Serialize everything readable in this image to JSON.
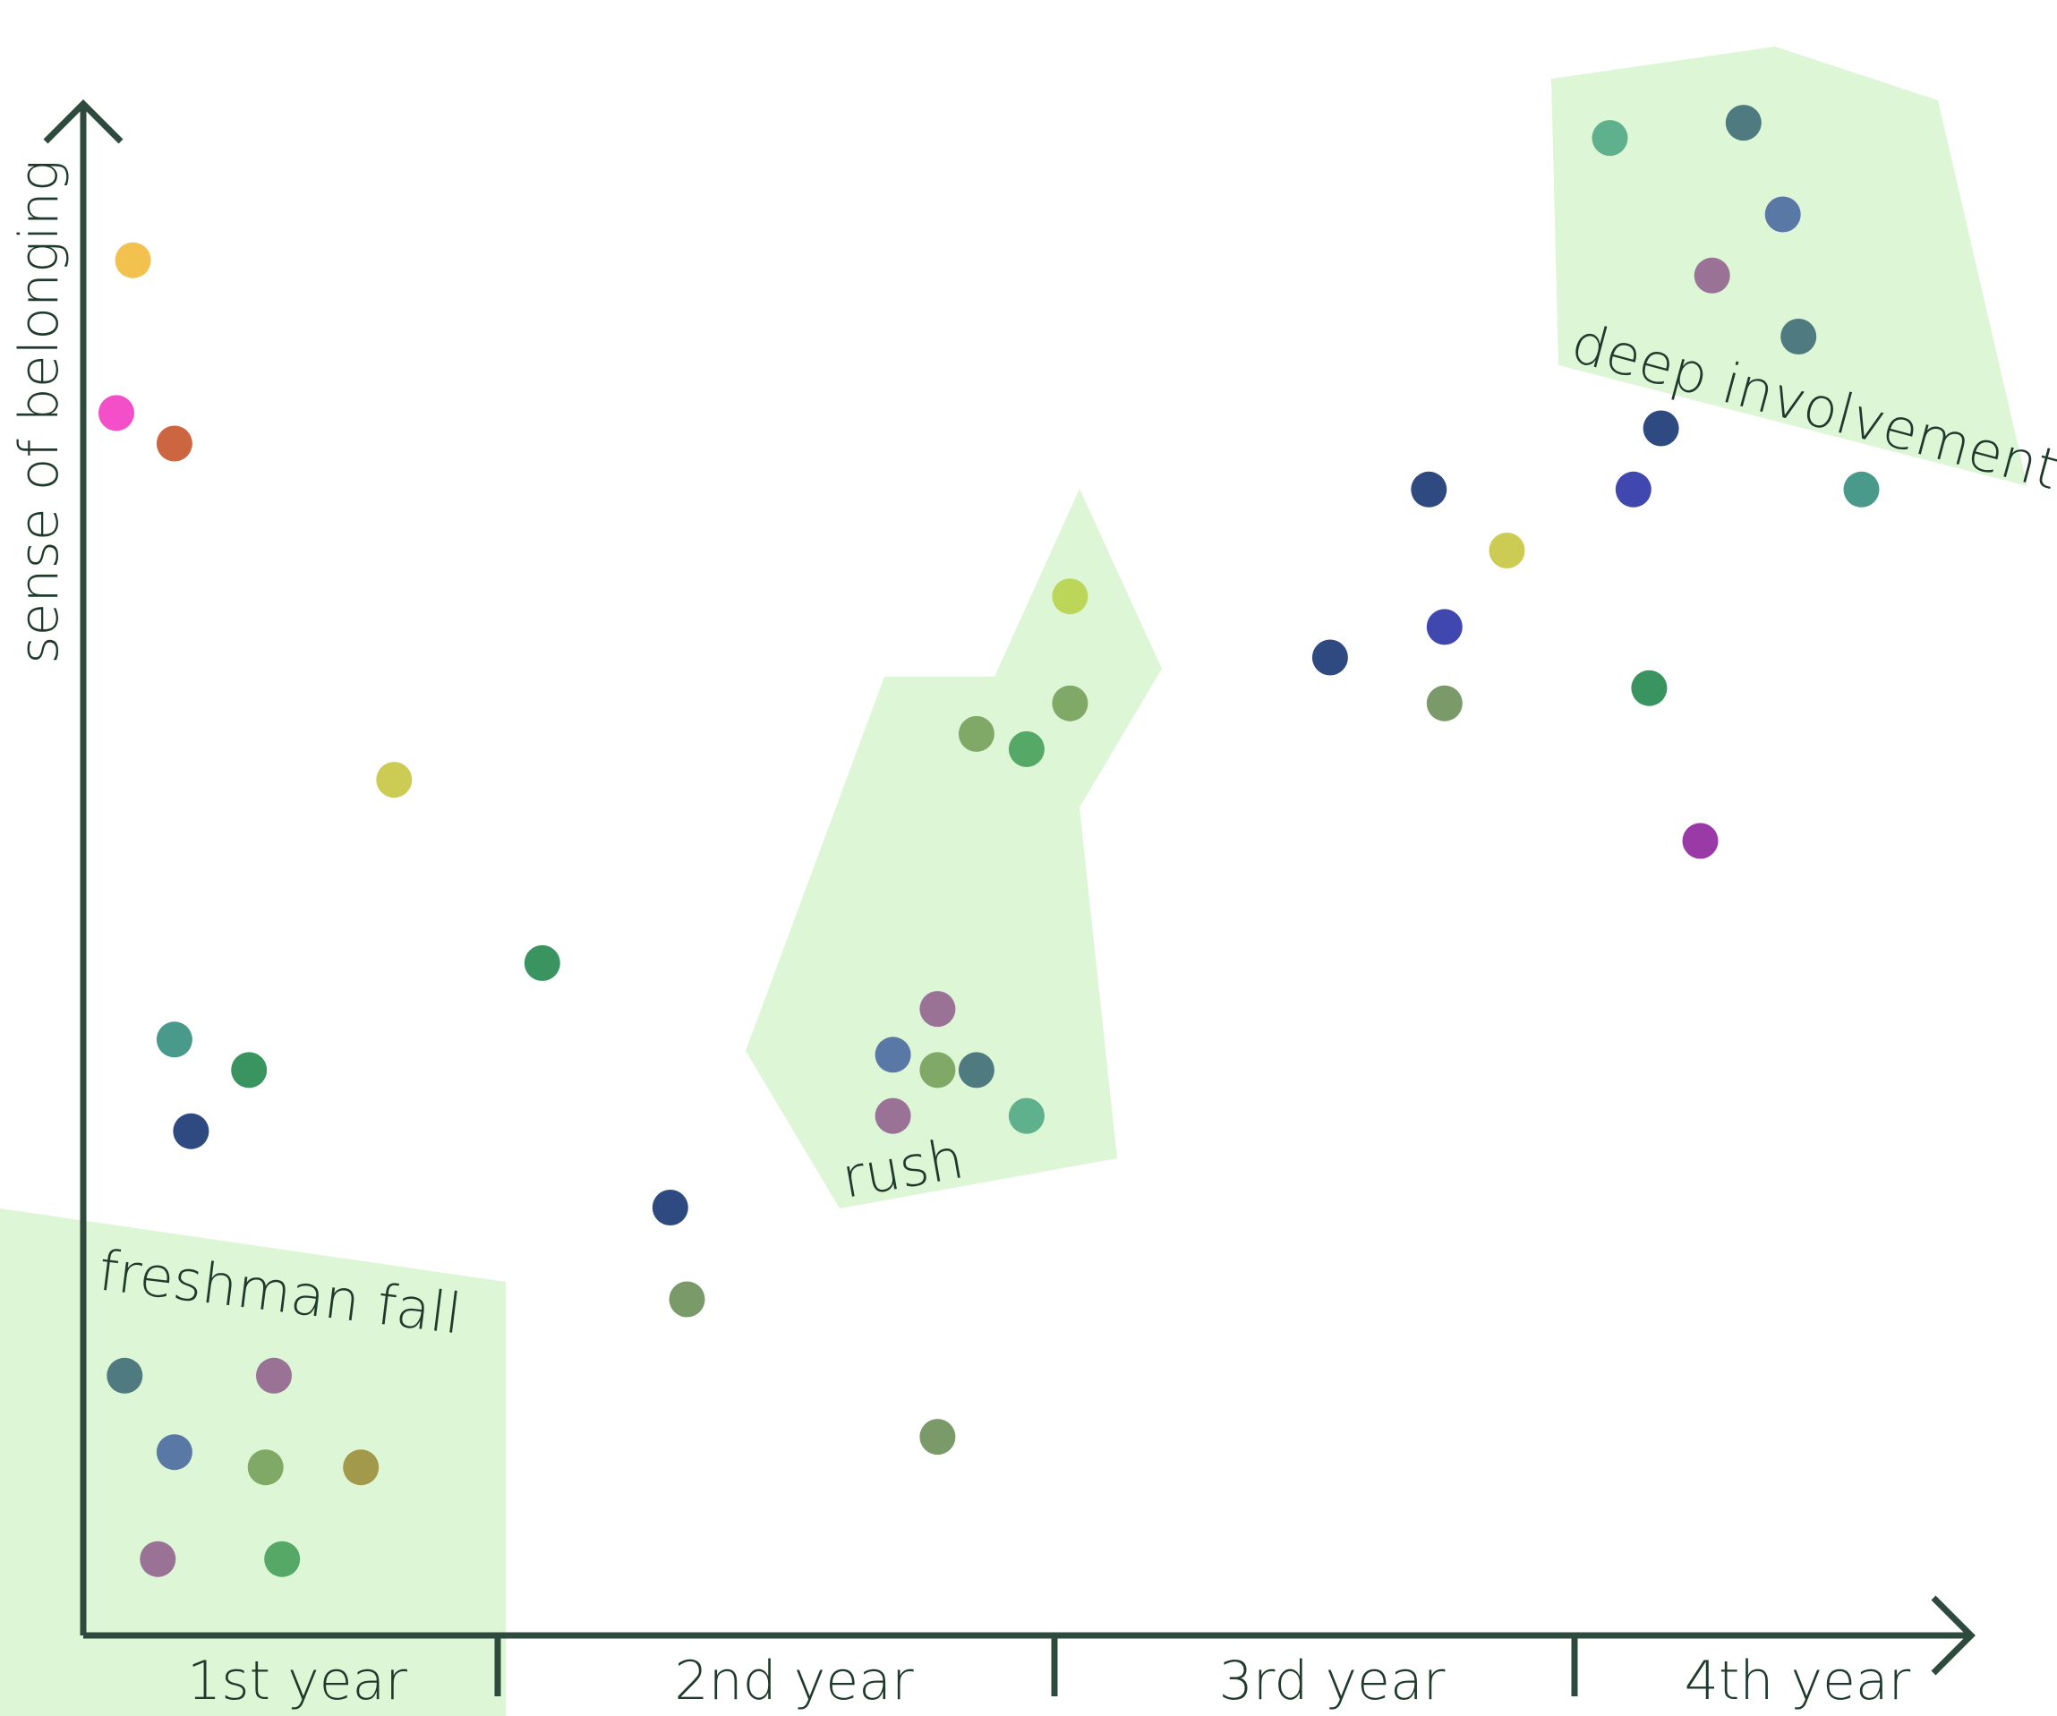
{
  "chart_data": {
    "type": "scatter",
    "ylabel": "sense of belonging",
    "categories": [
      "1st year",
      "2nd year",
      "3rd year",
      "4th year"
    ],
    "colors": {
      "axis": "#2e4a3e",
      "region": "#dcf6d6",
      "text": "#1f3a2c"
    },
    "regions": [
      {
        "label": "freshman fall",
        "category": "1st year"
      },
      {
        "label": "rush",
        "category": "2nd year"
      },
      {
        "label": "deep involvement",
        "category": "4th year"
      }
    ],
    "points": [
      {
        "x": 0.12,
        "y": 0.9,
        "color": "#f2c14e"
      },
      {
        "x": 0.08,
        "y": 0.8,
        "color": "#f24fc9"
      },
      {
        "x": 0.22,
        "y": 0.78,
        "color": "#cc6640"
      },
      {
        "x": 0.75,
        "y": 0.56,
        "color": "#cccc55"
      },
      {
        "x": 0.22,
        "y": 0.39,
        "color": "#4a9a8c"
      },
      {
        "x": 0.4,
        "y": 0.37,
        "color": "#3a9460"
      },
      {
        "x": 0.26,
        "y": 0.33,
        "color": "#2e4a80"
      },
      {
        "x": 0.1,
        "y": 0.17,
        "color": "#4e7a80"
      },
      {
        "x": 0.46,
        "y": 0.17,
        "color": "#9a7296"
      },
      {
        "x": 0.22,
        "y": 0.12,
        "color": "#5a78a6"
      },
      {
        "x": 0.44,
        "y": 0.11,
        "color": "#80a866"
      },
      {
        "x": 0.67,
        "y": 0.11,
        "color": "#a29a4a"
      },
      {
        "x": 0.18,
        "y": 0.05,
        "color": "#9a7296"
      },
      {
        "x": 0.48,
        "y": 0.05,
        "color": "#55a866"
      },
      {
        "x": 1.08,
        "y": 0.44,
        "color": "#3a9460"
      },
      {
        "x": 1.31,
        "y": 0.28,
        "color": "#2e4a80"
      },
      {
        "x": 1.34,
        "y": 0.22,
        "color": "#7a9a6a"
      },
      {
        "x": 1.71,
        "y": 0.38,
        "color": "#5a78a6"
      },
      {
        "x": 1.79,
        "y": 0.41,
        "color": "#9a7296"
      },
      {
        "x": 1.71,
        "y": 0.34,
        "color": "#9a7296"
      },
      {
        "x": 1.86,
        "y": 0.37,
        "color": "#4e7a80"
      },
      {
        "x": 1.79,
        "y": 0.37,
        "color": "#80a866"
      },
      {
        "x": 1.95,
        "y": 0.34,
        "color": "#5fb08c"
      },
      {
        "x": 1.79,
        "y": 0.13,
        "color": "#7a9a6a"
      },
      {
        "x": 1.86,
        "y": 0.59,
        "color": "#80a866"
      },
      {
        "x": 1.95,
        "y": 0.58,
        "color": "#55a866"
      },
      {
        "x": 2.03,
        "y": 0.61,
        "color": "#80a866"
      },
      {
        "x": 2.03,
        "y": 0.68,
        "color": "#bcd65a"
      },
      {
        "x": 2.53,
        "y": 0.64,
        "color": "#2e4a80"
      },
      {
        "x": 2.72,
        "y": 0.75,
        "color": "#2e4a80"
      },
      {
        "x": 2.87,
        "y": 0.71,
        "color": "#cccc55"
      },
      {
        "x": 2.75,
        "y": 0.66,
        "color": "#4048b0"
      },
      {
        "x": 2.75,
        "y": 0.61,
        "color": "#7a9a6a"
      },
      {
        "x": 3.09,
        "y": 0.98,
        "color": "#5fb08c"
      },
      {
        "x": 3.43,
        "y": 0.99,
        "color": "#4e7a80"
      },
      {
        "x": 3.53,
        "y": 0.93,
        "color": "#5a78a6"
      },
      {
        "x": 3.35,
        "y": 0.89,
        "color": "#9a7296"
      },
      {
        "x": 3.57,
        "y": 0.85,
        "color": "#4e7a80"
      },
      {
        "x": 3.22,
        "y": 0.79,
        "color": "#2e4a80"
      },
      {
        "x": 3.15,
        "y": 0.75,
        "color": "#4048b0"
      },
      {
        "x": 3.19,
        "y": 0.62,
        "color": "#3a9460"
      },
      {
        "x": 3.32,
        "y": 0.52,
        "color": "#9a3aa6"
      },
      {
        "x": 3.73,
        "y": 0.75,
        "color": "#4a9a8c"
      }
    ]
  }
}
